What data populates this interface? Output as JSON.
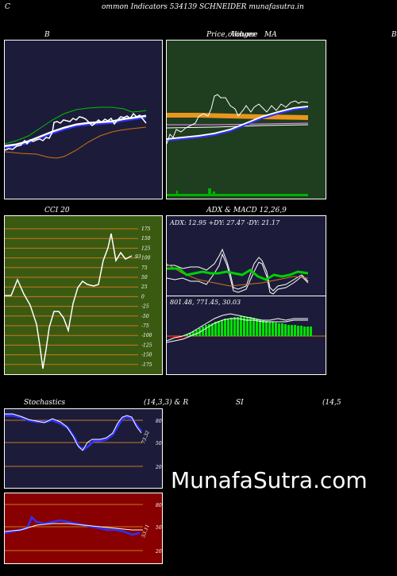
{
  "header": {
    "title": "ommon  Indicators 534139 SCHNEIDER munafasutra.in",
    "left_marker": "C",
    "right_marker": "B"
  },
  "panels": {
    "bollinger": {
      "label": "B"
    },
    "price": {
      "label_price": "Price,",
      "label_volume": "Volume",
      "label_ma": "MA",
      "label_overlap": "ollinger"
    },
    "cci": {
      "label": "CCI 20",
      "current": "93",
      "ticks": [
        "175",
        "150",
        "125",
        "100",
        "75",
        "50",
        "25",
        "0",
        "-25",
        "-50",
        "-75",
        "-100",
        "-125",
        "-150",
        "-175"
      ]
    },
    "adx": {
      "label": "ADX  & MACD 12,26,9",
      "values": "ADX: 12.95  +DY: 27.47 -DY: 21.17"
    },
    "macd": {
      "values": "801.48,   771.45,   30.03"
    },
    "stoch": {
      "label_left": "Stochastics",
      "label_mid": "(14,3,3) & R",
      "label_si": "SI",
      "label_right": "(14,5",
      "ticks": [
        "80",
        "50",
        "20"
      ],
      "current": "73.32"
    },
    "rsi": {
      "ticks": [
        "80",
        "50",
        "20"
      ],
      "current": "53.11"
    }
  },
  "watermark": "MunafaSutra.com",
  "colors": {
    "panel_navy": "#1c1c3a",
    "panel_green": "#1f3d1f",
    "cci_green": "#3b5a11",
    "rsi_red": "#880000",
    "grid_orange": "#c8781e"
  }
}
